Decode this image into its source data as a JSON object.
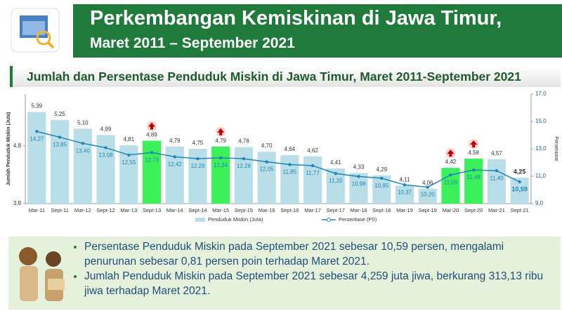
{
  "header": {
    "title": "Perkembangan Kemiskinan di Jawa Timur,",
    "subtitle": "Maret 2011 – September 2021"
  },
  "chart_data": {
    "type": "bar",
    "title": "Jumlah dan Persentase Penduduk Miskin di Jawa Timur, Maret 2011-September 2021",
    "y_label": "Jumlah Penduduk Miskin (Juta)",
    "y2_label": "Persentase",
    "categories": [
      "Mar-11",
      "Sept-11",
      "Mar-12",
      "Sept-12",
      "Mar-13",
      "Sept-13",
      "Mar-14",
      "Sept-14",
      "Mar-15",
      "Sept-15",
      "Mar-16",
      "Sept-16",
      "Mar-17",
      "Sept-17",
      "Mar-18",
      "Sept-18",
      "Mar-19",
      "Sept-19",
      "Mar-20",
      "Sept-20",
      "Mar-21",
      "Sept-21"
    ],
    "series": [
      {
        "name": "Penduduk Miskin (Juta)",
        "type": "bar",
        "color": "#b9dee8",
        "colors": [
          "#b9dee8",
          "#b9dee8",
          "#b9dee8",
          "#b9dee8",
          "#b9dee8",
          "#3cf05a",
          "#b9dee8",
          "#b9dee8",
          "#3cf05a",
          "#b9dee8",
          "#b9dee8",
          "#b9dee8",
          "#b9dee8",
          "#b9dee8",
          "#b9dee8",
          "#b9dee8",
          "#b9dee8",
          "#b9dee8",
          "#3cf05a",
          "#3cf05a",
          "#b9dee8",
          "#b9dee8"
        ],
        "values": [
          5.39,
          5.25,
          5.1,
          4.99,
          4.81,
          4.89,
          4.79,
          4.75,
          4.79,
          4.78,
          4.7,
          4.64,
          4.62,
          4.41,
          4.33,
          4.29,
          4.11,
          4.06,
          4.42,
          4.58,
          4.57,
          4.25
        ],
        "value_labels": [
          "5,39",
          "5,25",
          "5,10",
          "4,99",
          "4,81",
          "4,89",
          "4,79",
          "4,75",
          "4,79",
          "4,78",
          "4,70",
          "4,64",
          "4,62",
          "4,41",
          "4,33",
          "4,29",
          "4,11",
          "4,06",
          "4,42",
          "4,58",
          "4,57",
          "4,25"
        ]
      },
      {
        "name": "Persentase (P0)",
        "type": "line",
        "axis": "y2",
        "color": "#1f86b8",
        "values": [
          14.27,
          13.85,
          13.4,
          13.08,
          12.55,
          12.73,
          12.42,
          12.28,
          12.34,
          12.28,
          12.05,
          11.85,
          11.77,
          11.2,
          10.98,
          10.85,
          10.37,
          10.2,
          11.09,
          11.46,
          11.4,
          10.59
        ],
        "value_labels": [
          "14,27",
          "13,85",
          "13,40",
          "13,08",
          "12,55",
          "12,73",
          "12,42",
          "12,28",
          "12,34",
          "12,28",
          "12,05",
          "11,85",
          "11,77",
          "11,20",
          "10,98",
          "10,85",
          "10,37",
          "10,20",
          "11,09",
          "11,46",
          "11,40",
          "10,59"
        ]
      }
    ],
    "ylim": [
      3.8,
      5.7
    ],
    "yticks": [
      {
        "value": 3.8,
        "label": "3,8"
      },
      {
        "value": 4.8,
        "label": "4,8"
      }
    ],
    "y2lim": [
      9,
      17
    ],
    "y2ticks": [
      {
        "value": 9,
        "label": "9,0"
      },
      {
        "value": 11,
        "label": "11,0"
      },
      {
        "value": 13,
        "label": "13,0"
      },
      {
        "value": 15,
        "label": "15,0"
      },
      {
        "value": 17,
        "label": "17,0"
      }
    ]
  },
  "notes": [
    "Persentase Penduduk Miskin pada September 2021 sebesar 10,59 persen, mengalami penurunan sebesar 0,81 persen poin terhadap Maret 2021.",
    "Jumlah Penduduk Miskin pada September 2021 sebesar 4,259 juta jiwa, berkurang 313,13 ribu jiwa terhadap Maret 2021."
  ]
}
